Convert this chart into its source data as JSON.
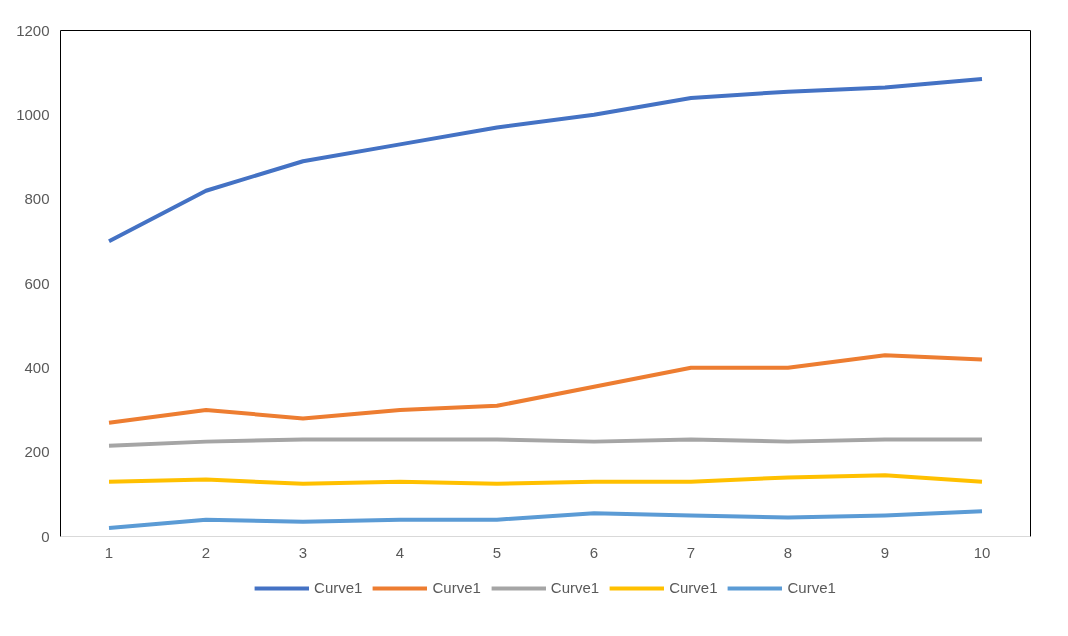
{
  "chart_data": {
    "type": "line",
    "categories": [
      "1",
      "2",
      "3",
      "4",
      "5",
      "6",
      "7",
      "8",
      "9",
      "10"
    ],
    "series": [
      {
        "name": "Curve1",
        "color": "#4472c4",
        "values": [
          700,
          820,
          890,
          930,
          970,
          1000,
          1040,
          1055,
          1065,
          1085
        ]
      },
      {
        "name": "Curve1",
        "color": "#ed7d31",
        "values": [
          270,
          300,
          280,
          300,
          310,
          355,
          400,
          400,
          430,
          420
        ]
      },
      {
        "name": "Curve1",
        "color": "#a5a5a5",
        "values": [
          215,
          225,
          230,
          230,
          230,
          225,
          230,
          225,
          230,
          230
        ]
      },
      {
        "name": "Curve1",
        "color": "#ffc000",
        "values": [
          130,
          135,
          125,
          130,
          125,
          130,
          130,
          140,
          145,
          130
        ]
      },
      {
        "name": "Curve1",
        "color": "#5b9bd5",
        "values": [
          20,
          40,
          35,
          40,
          40,
          55,
          50,
          45,
          50,
          60
        ]
      }
    ],
    "ylim": [
      0,
      1200
    ],
    "yticks": [
      0,
      200,
      400,
      600,
      800,
      1000,
      1200
    ],
    "grid": false,
    "legend": "bottom",
    "marker": "none",
    "line_style": "solid"
  }
}
